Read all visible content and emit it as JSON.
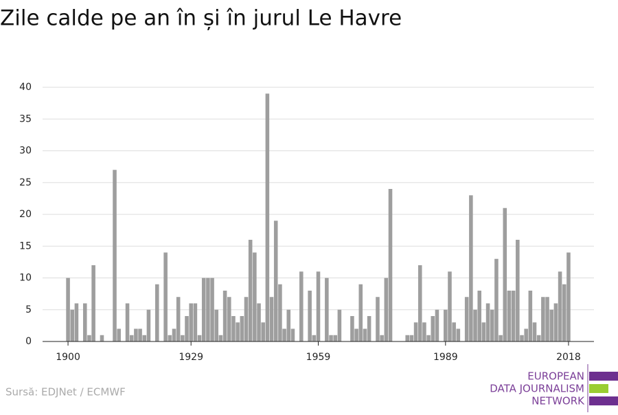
{
  "chart_data": {
    "type": "bar",
    "title": "Zile calde pe an în și în jurul Le Havre",
    "source": "Sursă: EDJNet / ECMWF",
    "logo": [
      "EUROPEAN",
      "DATA JOURNALISM",
      "NETWORK"
    ],
    "color": "#9e9e9e",
    "x": [
      1900,
      1901,
      1902,
      1903,
      1904,
      1905,
      1906,
      1907,
      1908,
      1909,
      1910,
      1911,
      1912,
      1913,
      1914,
      1915,
      1916,
      1917,
      1918,
      1919,
      1920,
      1921,
      1922,
      1923,
      1924,
      1925,
      1926,
      1927,
      1928,
      1929,
      1930,
      1931,
      1932,
      1933,
      1934,
      1935,
      1936,
      1937,
      1938,
      1939,
      1940,
      1941,
      1942,
      1943,
      1944,
      1945,
      1946,
      1947,
      1948,
      1949,
      1950,
      1951,
      1952,
      1953,
      1954,
      1955,
      1956,
      1957,
      1958,
      1959,
      1960,
      1961,
      1962,
      1963,
      1964,
      1965,
      1966,
      1967,
      1968,
      1969,
      1970,
      1971,
      1972,
      1973,
      1974,
      1975,
      1976,
      1977,
      1978,
      1979,
      1980,
      1981,
      1982,
      1983,
      1984,
      1985,
      1986,
      1987,
      1988,
      1989,
      1990,
      1991,
      1992,
      1993,
      1994,
      1995,
      1996,
      1997,
      1998,
      1999,
      2000,
      2001,
      2002,
      2003,
      2004,
      2005,
      2006,
      2007,
      2008,
      2009,
      2010,
      2011,
      2012,
      2013,
      2014,
      2015,
      2016,
      2017,
      2018
    ],
    "values": [
      10,
      5,
      6,
      0,
      6,
      1,
      12,
      0,
      1,
      0,
      0,
      27,
      2,
      0,
      6,
      1,
      2,
      2,
      1,
      5,
      0,
      9,
      0,
      14,
      1,
      2,
      7,
      1,
      4,
      6,
      6,
      1,
      10,
      10,
      10,
      5,
      1,
      8,
      7,
      4,
      3,
      4,
      7,
      16,
      14,
      6,
      3,
      39,
      7,
      19,
      9,
      2,
      5,
      2,
      0,
      11,
      0,
      8,
      1,
      11,
      0,
      10,
      1,
      1,
      5,
      0,
      0,
      4,
      2,
      9,
      2,
      4,
      0,
      7,
      1,
      10,
      24,
      0,
      0,
      0,
      1,
      1,
      3,
      12,
      3,
      1,
      4,
      5,
      0,
      5,
      11,
      3,
      2,
      0,
      7,
      23,
      5,
      8,
      3,
      6,
      5,
      13,
      1,
      21,
      8,
      8,
      16,
      1,
      2,
      8,
      3,
      1,
      7,
      7,
      5,
      6,
      11,
      9,
      14
    ],
    "xlim": [
      1894,
      2024
    ],
    "xticks": [
      1900,
      1929,
      1959,
      1989,
      2018
    ],
    "ylim": [
      0,
      40
    ],
    "yticks": [
      0,
      5,
      10,
      15,
      20,
      25,
      30,
      35,
      40
    ],
    "grid": true
  }
}
